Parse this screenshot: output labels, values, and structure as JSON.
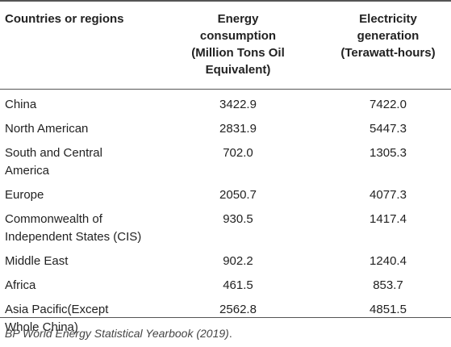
{
  "table": {
    "headers": {
      "col1": "Countries or regions",
      "col2_lines": [
        "Energy",
        "consumption",
        "(Million Tons Oil",
        "Equivalent)"
      ],
      "col3_lines": [
        "Electricity",
        "generation",
        "(Terawatt-hours)"
      ]
    },
    "rows": [
      {
        "name_lines": [
          "China"
        ],
        "energy": "3422.9",
        "electricity": "7422.0"
      },
      {
        "name_lines": [
          "North American"
        ],
        "energy": "2831.9",
        "electricity": "5447.3"
      },
      {
        "name_lines": [
          "South and Central",
          "America"
        ],
        "energy": "702.0",
        "electricity": "1305.3"
      },
      {
        "name_lines": [
          "Europe"
        ],
        "energy": "2050.7",
        "electricity": "4077.3"
      },
      {
        "name_lines": [
          "Commonwealth of",
          "Independent States (CIS)"
        ],
        "energy": "930.5",
        "electricity": "1417.4"
      },
      {
        "name_lines": [
          "Middle East"
        ],
        "energy": "902.2",
        "electricity": "1240.4"
      },
      {
        "name_lines": [
          "Africa"
        ],
        "energy": "461.5",
        "electricity": "853.7"
      },
      {
        "name_lines": [
          "Asia Pacific(Except",
          "Whole China)"
        ],
        "energy": "2562.8",
        "electricity": "4851.5"
      }
    ]
  },
  "footnote": {
    "source": "BP World Energy Statistical Yearbook (2019)",
    "trailing": "."
  }
}
